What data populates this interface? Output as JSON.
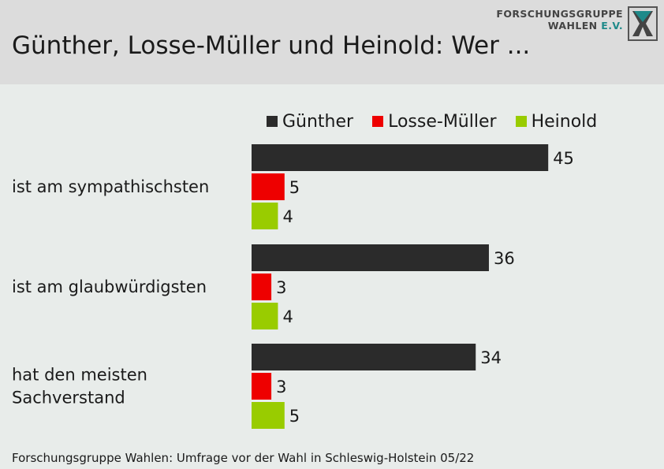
{
  "header": {
    "title": "Günther, Losse-Müller und Heinold: Wer ...",
    "logo_line1": "FORSCHUNGSGRUPPE",
    "logo_line2": "WAHLEN",
    "logo_ev": "E.V."
  },
  "legend": [
    {
      "label": "Günther",
      "color": "#2b2b2b"
    },
    {
      "label": "Losse-Müller",
      "color": "#ee0000"
    },
    {
      "label": "Heinold",
      "color": "#99cc00"
    }
  ],
  "chart_data": {
    "type": "bar",
    "orientation": "horizontal",
    "title": "Günther, Losse-Müller und Heinold: Wer ...",
    "categories": [
      [
        "ist am sympathischsten"
      ],
      [
        "ist am glaubwürdigsten"
      ],
      [
        "hat den meisten",
        "Sachverstand"
      ]
    ],
    "series": [
      {
        "name": "Günther",
        "color": "#2b2b2b",
        "values": [
          45,
          36,
          34
        ]
      },
      {
        "name": "Losse-Müller",
        "color": "#ee0000",
        "values": [
          5,
          3,
          3
        ]
      },
      {
        "name": "Heinold",
        "color": "#99cc00",
        "values": [
          4,
          4,
          5
        ]
      }
    ],
    "data_labels": true,
    "legend_position": "top",
    "grid": false
  },
  "footer": {
    "source": "Forschungsgruppe Wahlen: Umfrage vor der Wahl in Schleswig-Holstein 05/22"
  }
}
